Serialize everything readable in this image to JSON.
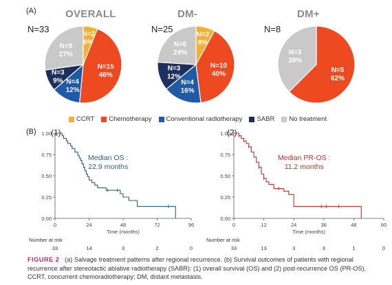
{
  "panel_a_label": "(A)",
  "panel_b_label": "(B)",
  "colors": {
    "CCRT": "#f2b134",
    "Chemotherapy": "#ee4a22",
    "Conventional radiotherapy": "#1f5aa8",
    "SABR": "#1c2f5e",
    "No treatment": "#c9c9c9",
    "os_curve": "#2f5c85",
    "pros_curve": "#cf2e2e"
  },
  "legend": [
    {
      "key": "CCRT",
      "label": "CCRT"
    },
    {
      "key": "Chemotherapy",
      "label": "Chemotherapy"
    },
    {
      "key": "Conventional radiotherapy",
      "label": "Conventional radiotherapy"
    },
    {
      "key": "SABR",
      "label": "SABR"
    },
    {
      "key": "No treatment",
      "label": "No treatment"
    }
  ],
  "chart_data": [
    {
      "type": "pie",
      "title": "OVERALL",
      "n_label": "N=33",
      "slices": [
        {
          "category": "CCRT",
          "n": "N=2",
          "pct": "6%",
          "value": 2
        },
        {
          "category": "Chemotherapy",
          "n": "N=15",
          "pct": "46%",
          "value": 15
        },
        {
          "category": "Conventional radiotherapy",
          "n": "N=4",
          "pct": "12%",
          "value": 4
        },
        {
          "category": "SABR",
          "n": "N=3",
          "pct": "9%",
          "value": 3
        },
        {
          "category": "No treatment",
          "n": "N=9",
          "pct": "27%",
          "value": 9
        }
      ]
    },
    {
      "type": "pie",
      "title": "DM-",
      "n_label": "N=25",
      "slices": [
        {
          "category": "CCRT",
          "n": "N=2",
          "pct": "8%",
          "value": 2
        },
        {
          "category": "Chemotherapy",
          "n": "N=10",
          "pct": "40%",
          "value": 10
        },
        {
          "category": "Conventional radiotherapy",
          "n": "N=4",
          "pct": "16%",
          "value": 4
        },
        {
          "category": "SABR",
          "n": "N=3",
          "pct": "12%",
          "value": 3
        },
        {
          "category": "No treatment",
          "n": "N=6",
          "pct": "24%",
          "value": 6
        }
      ]
    },
    {
      "type": "pie",
      "title": "DM+",
      "n_label": "N=8",
      "slices": [
        {
          "category": "Chemotherapy",
          "n": "N=5",
          "pct": "62%",
          "value": 5
        },
        {
          "category": "No treatment",
          "n": "N=3",
          "pct": "38%",
          "value": 3
        }
      ]
    },
    {
      "type": "line",
      "title": "(1)",
      "subtype": "kaplan-meier",
      "xlabel": "Time (months)",
      "ylabel": "",
      "xlim": [
        0,
        96
      ],
      "ylim": [
        0,
        1
      ],
      "xticks": [
        "0",
        "24",
        "48",
        "72",
        "96"
      ],
      "yticks": [
        "0.00",
        "0.25",
        "0.50",
        "0.75",
        "1.00"
      ],
      "annotation": [
        "Median OS   :",
        "22.9 months"
      ],
      "risk_label": "Number at risk",
      "risk_values": [
        "33",
        "14",
        "3",
        "2",
        "0"
      ],
      "steps": [
        [
          0,
          1.0
        ],
        [
          5,
          0.97
        ],
        [
          6,
          0.94
        ],
        [
          8,
          0.91
        ],
        [
          9,
          0.88
        ],
        [
          11,
          0.85
        ],
        [
          12,
          0.82
        ],
        [
          14,
          0.78
        ],
        [
          16,
          0.74
        ],
        [
          17,
          0.71
        ],
        [
          18,
          0.68
        ],
        [
          19,
          0.64
        ],
        [
          20,
          0.6
        ],
        [
          21,
          0.56
        ],
        [
          22,
          0.52
        ],
        [
          23,
          0.49
        ],
        [
          24,
          0.45
        ],
        [
          26,
          0.42
        ],
        [
          28,
          0.39
        ],
        [
          30,
          0.36
        ],
        [
          36,
          0.33
        ],
        [
          46,
          0.29
        ],
        [
          48,
          0.25
        ],
        [
          52,
          0.21
        ],
        [
          58,
          0.14
        ],
        [
          84,
          0.14
        ],
        [
          85,
          0.0
        ]
      ],
      "censored": [
        [
          37,
          0.33
        ],
        [
          44,
          0.33
        ],
        [
          80,
          0.14
        ]
      ]
    },
    {
      "type": "line",
      "title": "(2)",
      "subtype": "kaplan-meier",
      "xlabel": "Time (months)",
      "ylabel": "",
      "xlim": [
        0,
        60
      ],
      "ylim": [
        0,
        1
      ],
      "xticks": [
        "0",
        "12",
        "24",
        "36",
        "48",
        "60"
      ],
      "yticks": [
        "0.00",
        "0.25",
        "0.50",
        "0.75",
        "1.00"
      ],
      "annotation": [
        "Median PR-OS   :",
        "11.2 months"
      ],
      "risk_label": "Number at risk",
      "risk_values": [
        "33",
        "13",
        "3",
        "3",
        "1",
        "0"
      ],
      "steps": [
        [
          0,
          1.0
        ],
        [
          2,
          0.97
        ],
        [
          3,
          0.94
        ],
        [
          4,
          0.91
        ],
        [
          5,
          0.88
        ],
        [
          6,
          0.84
        ],
        [
          7,
          0.78
        ],
        [
          8,
          0.72
        ],
        [
          9,
          0.66
        ],
        [
          10,
          0.6
        ],
        [
          11,
          0.52
        ],
        [
          12,
          0.47
        ],
        [
          13,
          0.43
        ],
        [
          14,
          0.4
        ],
        [
          16,
          0.35
        ],
        [
          20,
          0.32
        ],
        [
          22,
          0.28
        ],
        [
          24,
          0.14
        ],
        [
          50,
          0.14
        ],
        [
          51,
          0.0
        ]
      ],
      "censored": [
        [
          2,
          0.97
        ],
        [
          4,
          0.91
        ],
        [
          6,
          0.84
        ],
        [
          10,
          0.6
        ],
        [
          12,
          0.47
        ],
        [
          18,
          0.35
        ],
        [
          35,
          0.14
        ],
        [
          37,
          0.14
        ],
        [
          42,
          0.14
        ]
      ]
    }
  ],
  "caption": {
    "figure_label": "FIGURE 2",
    "text": "(a) Salvage treatment patterns after regional recurrence. (b) Survival outcomes of patients with regional recurrence after stereotactic ablative radiotherapy (SABR): (1) overall survival (OS) and (2) post-recurrence OS (PR-OS). CCRT, concurrent chemoradiotherapy; DM, distant metastasis."
  }
}
